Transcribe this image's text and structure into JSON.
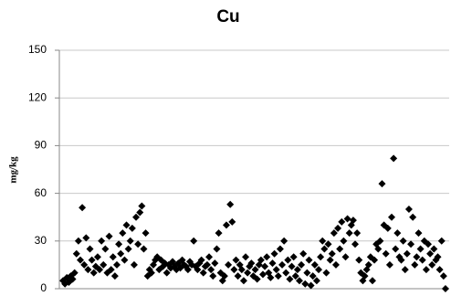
{
  "chart_data": {
    "type": "scatter",
    "title": "Cu",
    "y_label": "mg/kg",
    "color": "#000000",
    "grid": true,
    "ylim": [
      0,
      150
    ],
    "yticks": [
      0,
      30,
      60,
      90,
      120,
      150
    ],
    "values": [
      5,
      3,
      7,
      4,
      8,
      6,
      10,
      22,
      30,
      18,
      51,
      15,
      32,
      12,
      25,
      18,
      10,
      14,
      20,
      12,
      30,
      15,
      25,
      10,
      33,
      12,
      20,
      8,
      15,
      28,
      22,
      35,
      18,
      40,
      25,
      30,
      38,
      15,
      45,
      28,
      48,
      52,
      25,
      35,
      8,
      12,
      10,
      15,
      18,
      20,
      12,
      18,
      14,
      16,
      10,
      15,
      13,
      17,
      14,
      12,
      16,
      13,
      18,
      15,
      14,
      12,
      17,
      15,
      30,
      14,
      12,
      16,
      18,
      10,
      14,
      15,
      20,
      12,
      8,
      16,
      25,
      35,
      10,
      5,
      8,
      40,
      15,
      53,
      42,
      12,
      18,
      8,
      15,
      12,
      5,
      20,
      10,
      14,
      16,
      8,
      12,
      6,
      15,
      18,
      9,
      14,
      20,
      10,
      7,
      16,
      22,
      12,
      8,
      25,
      15,
      30,
      10,
      18,
      6,
      14,
      20,
      8,
      12,
      5,
      15,
      22,
      3,
      10,
      18,
      2,
      8,
      15,
      5,
      12,
      20,
      30,
      25,
      10,
      28,
      18,
      22,
      35,
      15,
      38,
      25,
      42,
      30,
      20,
      44,
      35,
      40,
      43,
      28,
      35,
      18,
      10,
      5,
      8,
      12,
      15,
      20,
      5,
      18,
      28,
      25,
      30,
      66,
      40,
      22,
      38,
      15,
      45,
      82,
      25,
      35,
      20,
      18,
      30,
      12,
      22,
      50,
      28,
      45,
      15,
      20,
      35,
      25,
      18,
      30,
      12,
      28,
      22,
      15,
      25,
      18,
      20,
      12,
      30,
      8,
      0
    ]
  }
}
